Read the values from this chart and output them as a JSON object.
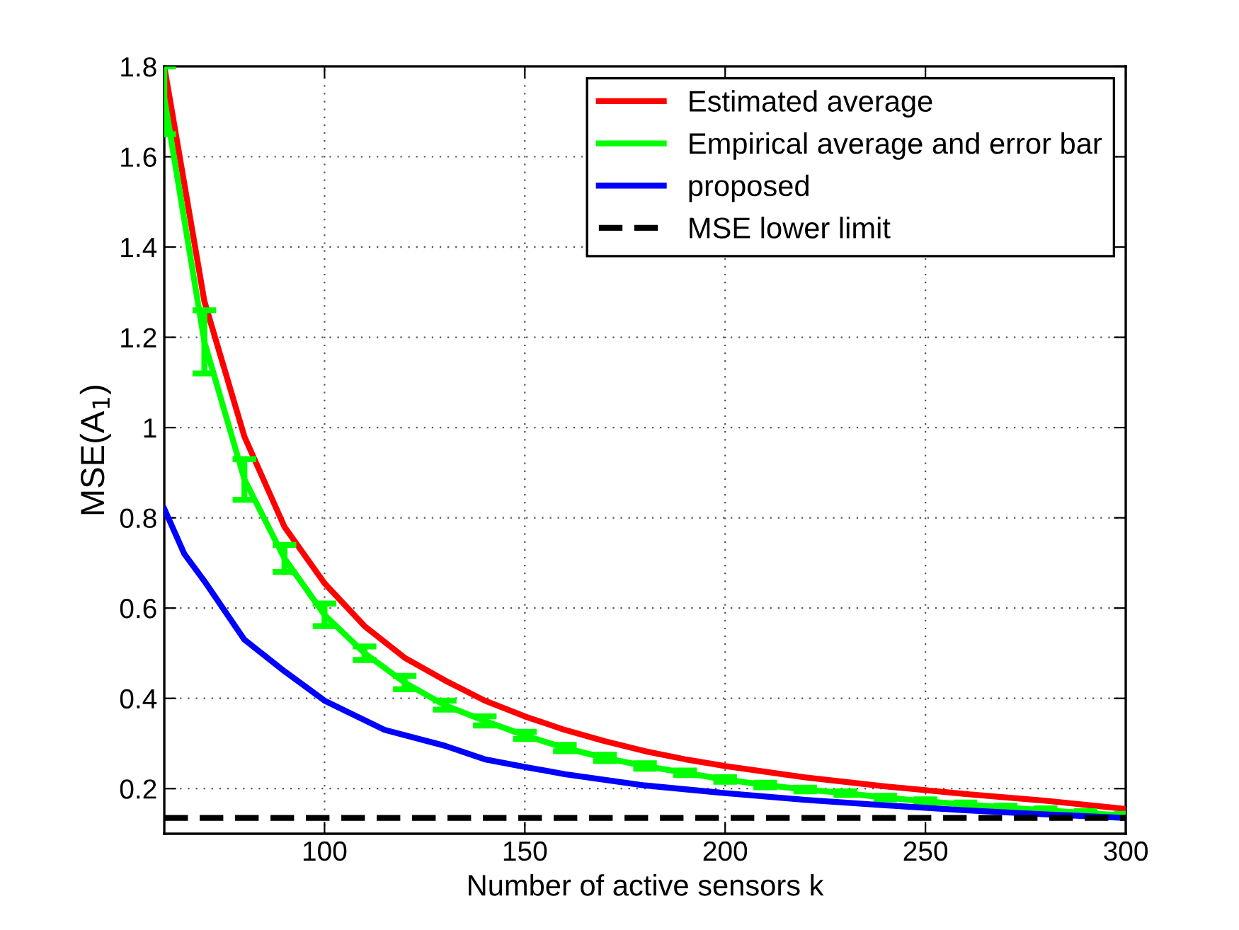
{
  "chart_data": {
    "type": "line",
    "xlabel": "Number of active sensors k",
    "ylabel": "MSE(A$_{1}$)",
    "xlim": [
      60,
      300
    ],
    "ylim": [
      0.1,
      1.8
    ],
    "xticks": [
      100,
      150,
      200,
      250,
      300
    ],
    "yticks": [
      {
        "value": 0.2,
        "label": "0.2"
      },
      {
        "value": 0.4,
        "label": "0.4"
      },
      {
        "value": 0.6,
        "label": "0.6"
      },
      {
        "value": 0.8,
        "label": "0.8"
      },
      {
        "value": 1,
        "label": "1"
      },
      {
        "value": 1.2,
        "label": "1.2"
      },
      {
        "value": 1.4,
        "label": "1.4"
      },
      {
        "value": 1.6,
        "label": "1.6"
      },
      {
        "value": 1.8,
        "label": "1.8"
      }
    ],
    "grid": true,
    "legend": "top right",
    "series": [
      {
        "name": "Estimated average",
        "color": "#ff0000",
        "x": [
          60,
          70,
          80,
          90,
          100,
          110,
          120,
          130,
          140,
          150,
          160,
          170,
          180,
          190,
          200,
          220,
          240,
          260,
          280,
          300
        ],
        "values": [
          1.8,
          1.28,
          0.98,
          0.78,
          0.655,
          0.56,
          0.49,
          0.44,
          0.395,
          0.36,
          0.33,
          0.305,
          0.283,
          0.265,
          0.25,
          0.225,
          0.205,
          0.188,
          0.173,
          0.155
        ]
      },
      {
        "name": "Empirical average and error bar",
        "color": "#00ff00",
        "x": [
          60,
          70,
          80,
          90,
          100,
          110,
          120,
          130,
          140,
          150,
          160,
          170,
          180,
          190,
          200,
          210,
          220,
          230,
          240,
          250,
          260,
          270,
          280,
          290,
          300
        ],
        "values": [
          1.73,
          1.19,
          0.885,
          0.71,
          0.585,
          0.5,
          0.435,
          0.385,
          0.35,
          0.318,
          0.29,
          0.268,
          0.25,
          0.235,
          0.22,
          0.208,
          0.198,
          0.19,
          0.18,
          0.172,
          0.165,
          0.158,
          0.152,
          0.146,
          0.14
        ],
        "errors": [
          [
            1.65,
            1.8
          ],
          [
            1.12,
            1.26
          ],
          [
            0.84,
            0.93
          ],
          [
            0.68,
            0.74
          ],
          [
            0.56,
            0.61
          ],
          [
            0.485,
            0.515
          ],
          [
            0.42,
            0.45
          ],
          [
            0.375,
            0.395
          ],
          [
            0.34,
            0.36
          ],
          [
            0.31,
            0.326
          ],
          [
            0.283,
            0.297
          ],
          [
            0.261,
            0.275
          ],
          [
            0.244,
            0.256
          ],
          [
            0.23,
            0.24
          ],
          [
            0.215,
            0.225
          ],
          [
            0.203,
            0.213
          ],
          [
            0.194,
            0.202
          ],
          [
            0.186,
            0.194
          ],
          [
            0.176,
            0.184
          ],
          [
            0.168,
            0.176
          ],
          [
            0.161,
            0.169
          ],
          [
            0.154,
            0.162
          ],
          [
            0.148,
            0.156
          ],
          [
            0.142,
            0.15
          ],
          [
            0.136,
            0.144
          ]
        ]
      },
      {
        "name": "proposed",
        "color": "#0000ff",
        "x": [
          60,
          65,
          70,
          80,
          90,
          100,
          115,
          130,
          140,
          150,
          160,
          180,
          200,
          220,
          240,
          260,
          280,
          300
        ],
        "values": [
          0.82,
          0.72,
          0.66,
          0.53,
          0.46,
          0.395,
          0.33,
          0.295,
          0.265,
          0.248,
          0.232,
          0.207,
          0.19,
          0.175,
          0.163,
          0.152,
          0.143,
          0.135
        ]
      },
      {
        "name": "MSE lower limit",
        "color": "#000000",
        "line_style": "dashed",
        "x": [
          60,
          300
        ],
        "values": [
          0.135,
          0.135
        ]
      }
    ]
  }
}
